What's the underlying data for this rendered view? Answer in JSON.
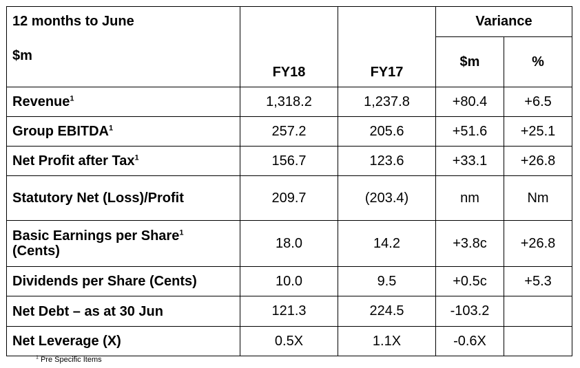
{
  "header": {
    "period": "12 months to June",
    "unit": "$m",
    "fy18": "FY18",
    "fy17": "FY17",
    "variance": "Variance",
    "var_dollars": "$m",
    "var_percent": "%"
  },
  "rows": [
    {
      "label": "Revenue",
      "sup": "1",
      "fy18": "1,318.2",
      "fy17": "1,237.8",
      "var_m": "+80.4",
      "var_pct": "+6.5"
    },
    {
      "label": "Group EBITDA",
      "sup": "1",
      "fy18": "257.2",
      "fy17": "205.6",
      "var_m": "+51.6",
      "var_pct": "+25.1"
    },
    {
      "label": "Net Profit after Tax",
      "sup": "1",
      "fy18": "156.7",
      "fy17": "123.6",
      "var_m": "+33.1",
      "var_pct": "+26.8"
    },
    {
      "label": "Statutory Net (Loss)/Profit",
      "sup": "",
      "fy18": "209.7",
      "fy17": "(203.4)",
      "var_m": "nm",
      "var_pct": "Nm"
    },
    {
      "label": "Basic Earnings per Share",
      "sup": "1",
      "label2": "(Cents)",
      "fy18": "18.0",
      "fy17": "14.2",
      "var_m": "+3.8c",
      "var_pct": "+26.8"
    },
    {
      "label": "Dividends per Share (Cents)",
      "sup": "",
      "fy18": "10.0",
      "fy17": "9.5",
      "var_m": "+0.5c",
      "var_pct": "+5.3"
    },
    {
      "label": "Net Debt – as at 30 Jun",
      "sup": "",
      "fy18": "121.3",
      "fy17": "224.5",
      "var_m": "-103.2",
      "var_pct": ""
    },
    {
      "label": "Net Leverage (X)",
      "sup": "",
      "fy18": "0.5X",
      "fy17": "1.1X",
      "var_m": "-0.6X",
      "var_pct": ""
    }
  ],
  "footnote": {
    "marker": "1",
    "text": "Pre Specific Items"
  }
}
